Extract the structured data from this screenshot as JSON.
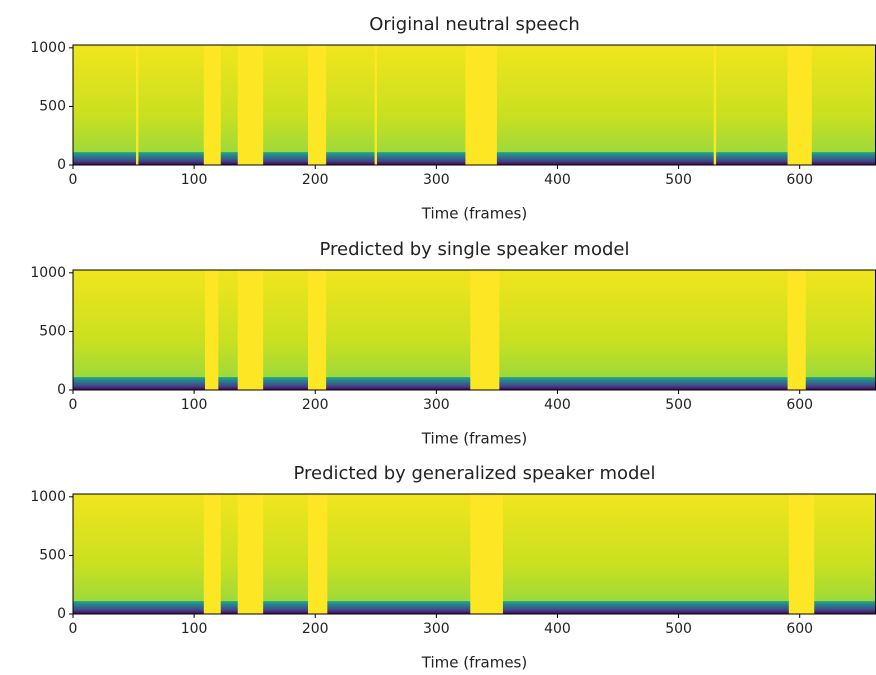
{
  "chart_data": [
    {
      "type": "spectrogram",
      "title": "Original neutral speech",
      "xlabel": "Time (frames)",
      "xlim": [
        0,
        663
      ],
      "ylim": [
        0,
        1024
      ],
      "xticks": [
        0,
        100,
        200,
        300,
        400,
        500,
        600
      ],
      "yticks": [
        0,
        500,
        1000
      ],
      "band_top": 110,
      "silences": [
        [
          52,
          54
        ],
        [
          108,
          122
        ],
        [
          136,
          157
        ],
        [
          194,
          209
        ],
        [
          249,
          251
        ],
        [
          324,
          350
        ],
        [
          529,
          531
        ],
        [
          590,
          610
        ]
      ]
    },
    {
      "type": "spectrogram",
      "title": "Predicted by single speaker model",
      "xlabel": "Time (frames)",
      "xlim": [
        0,
        663
      ],
      "ylim": [
        0,
        1024
      ],
      "xticks": [
        0,
        100,
        200,
        300,
        400,
        500,
        600
      ],
      "yticks": [
        0,
        500,
        1000
      ],
      "band_top": 110,
      "silences": [
        [
          109,
          120
        ],
        [
          136,
          157
        ],
        [
          194,
          209
        ],
        [
          328,
          352
        ],
        [
          590,
          605
        ]
      ]
    },
    {
      "type": "spectrogram",
      "title": "Predicted by generalized speaker model",
      "xlabel": "Time (frames)",
      "xlim": [
        0,
        663
      ],
      "ylim": [
        0,
        1024
      ],
      "xticks": [
        0,
        100,
        200,
        300,
        400,
        500,
        600
      ],
      "yticks": [
        0,
        500,
        1000
      ],
      "band_top": 110,
      "silences": [
        [
          108,
          122
        ],
        [
          136,
          157
        ],
        [
          194,
          210
        ],
        [
          328,
          355
        ],
        [
          591,
          612
        ]
      ]
    }
  ]
}
